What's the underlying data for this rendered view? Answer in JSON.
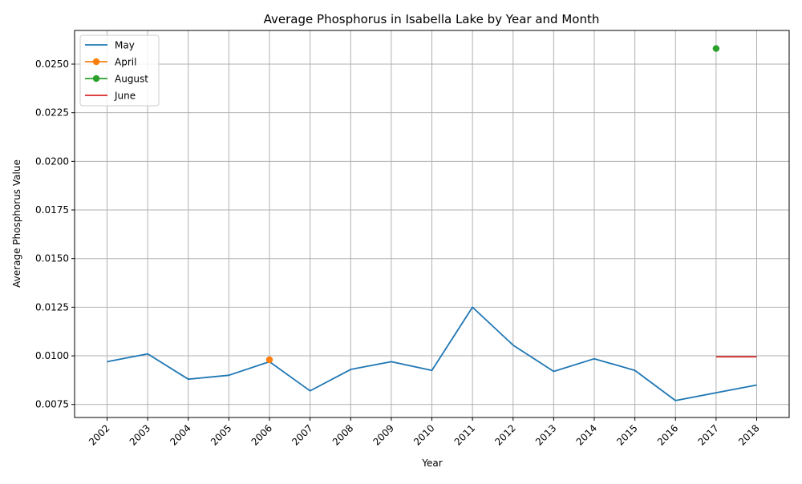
{
  "chart_data": {
    "type": "line",
    "title": "Average Phosphorus in Isabella Lake by Year and Month",
    "xlabel": "Year",
    "ylabel": "Average Phosphorus Value",
    "x_tick_labels": [
      "2002",
      "2003",
      "2004",
      "2005",
      "2006",
      "2007",
      "2008",
      "2009",
      "2010",
      "2011",
      "2012",
      "2013",
      "2014",
      "2015",
      "2016",
      "2017",
      "2018"
    ],
    "y_ticks": [
      "0.0075",
      "0.0100",
      "0.0125",
      "0.0150",
      "0.0175",
      "0.0200",
      "0.0225",
      "0.0250"
    ],
    "ylim": [
      0.00683,
      0.02673
    ],
    "grid": true,
    "legend_position": "top-left",
    "series": [
      {
        "name": "May",
        "color": "#1f77b4",
        "marker": false,
        "x": [
          2002,
          2003,
          2004,
          2005,
          2006,
          2007,
          2008,
          2009,
          2010,
          2011,
          2012,
          2013,
          2014,
          2015,
          2016,
          2017,
          2018
        ],
        "y": [
          0.0097,
          0.0101,
          0.0088,
          0.009,
          0.0097,
          0.0082,
          0.0093,
          0.0097,
          0.00925,
          0.0125,
          0.01055,
          0.0092,
          0.00985,
          0.00925,
          0.0077,
          0.0081,
          0.0085
        ]
      },
      {
        "name": "April",
        "color": "#ff7f0e",
        "marker": true,
        "x": [
          2006
        ],
        "y": [
          0.0098
        ]
      },
      {
        "name": "August",
        "color": "#2ca02c",
        "marker": true,
        "x": [
          2017
        ],
        "y": [
          0.0258
        ]
      },
      {
        "name": "June",
        "color": "#d62728",
        "marker": false,
        "x": [
          2017,
          2018
        ],
        "y": [
          0.00995,
          0.00995
        ]
      }
    ]
  }
}
